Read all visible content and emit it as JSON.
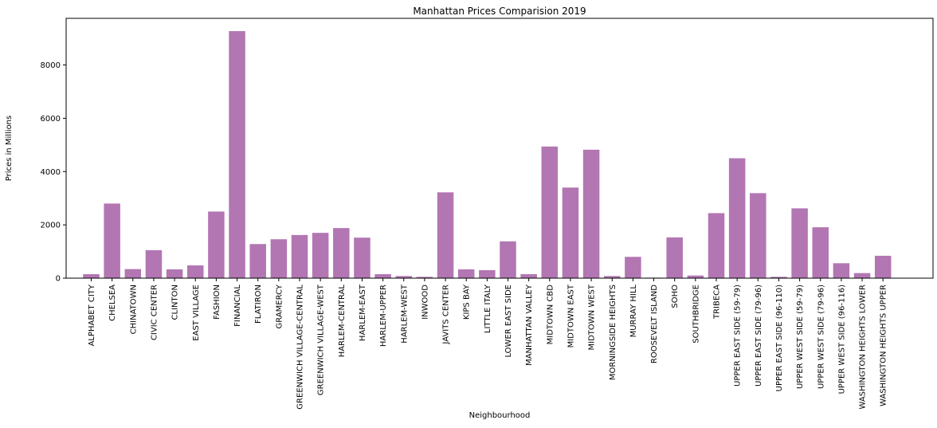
{
  "chart_data": {
    "type": "bar",
    "title": "Manhattan Prices Comparision 2019",
    "xlabel": "Neighbourhood",
    "ylabel": "Prices in Millions",
    "ylim": [
      0,
      9750
    ],
    "yticks": [
      "0",
      "2000",
      "4000",
      "6000",
      "8000"
    ],
    "ytick_values": [
      0,
      2000,
      4000,
      6000,
      8000
    ],
    "bar_color": "#b276b2",
    "grid": false,
    "categories": [
      "ALPHABET CITY",
      "CHELSEA",
      "CHINATOWN",
      "CIVIC CENTER",
      "CLINTON",
      "EAST VILLAGE",
      "FASHION",
      "FINANCIAL",
      "FLATIRON",
      "GRAMERCY",
      "GREENWICH VILLAGE-CENTRAL",
      "GREENWICH VILLAGE-WEST",
      "HARLEM-CENTRAL",
      "HARLEM-EAST",
      "HARLEM-UPPER",
      "HARLEM-WEST",
      "INWOOD",
      "JAVITS CENTER",
      "KIPS BAY",
      "LITTLE ITALY",
      "LOWER EAST SIDE",
      "MANHATTAN VALLEY",
      "MIDTOWN CBD",
      "MIDTOWN EAST",
      "MIDTOWN WEST",
      "MORNINGSIDE HEIGHTS",
      "MURRAY HILL",
      "ROOSEVELT ISLAND",
      "SOHO",
      "SOUTHBRIDGE",
      "TRIBECA",
      "UPPER EAST SIDE (59-79)",
      "UPPER EAST SIDE (79-96)",
      "UPPER EAST SIDE (96-110)",
      "UPPER WEST SIDE (59-79)",
      "UPPER WEST SIDE (79-96)",
      "UPPER WEST SIDE (96-116)",
      "WASHINGTON HEIGHTS LOWER",
      "WASHINGTON HEIGHTS UPPER"
    ],
    "values": [
      150,
      2800,
      340,
      1050,
      330,
      480,
      2500,
      9270,
      1280,
      1460,
      1620,
      1700,
      1880,
      1520,
      150,
      80,
      50,
      3220,
      330,
      300,
      1380,
      150,
      4940,
      3400,
      4820,
      80,
      800,
      20,
      1530,
      100,
      2440,
      4500,
      3190,
      50,
      2620,
      1910,
      560,
      190,
      840
    ]
  }
}
